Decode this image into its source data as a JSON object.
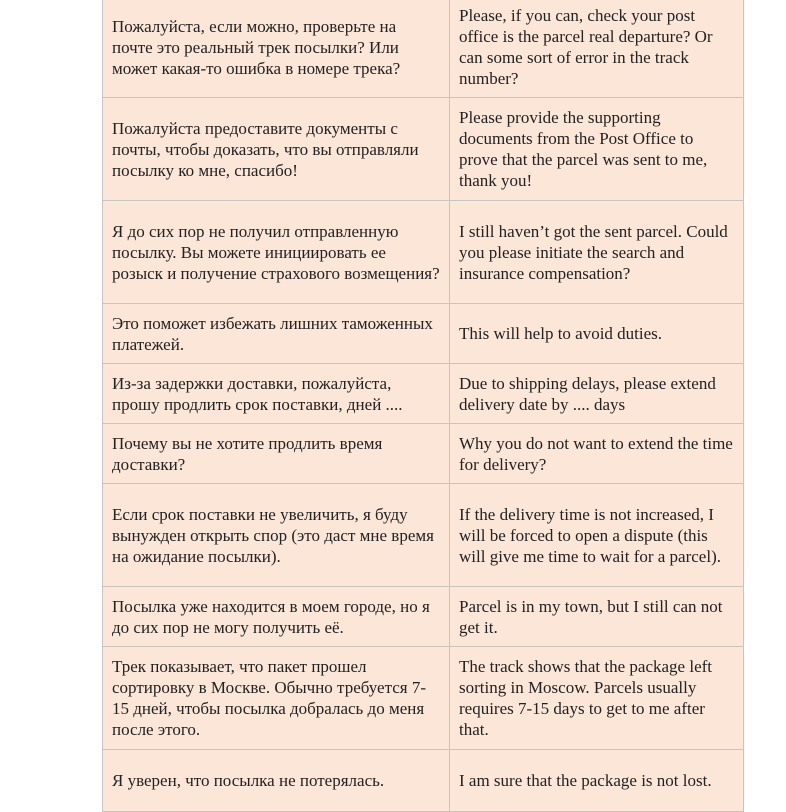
{
  "table": {
    "rows": [
      [
        "Пожалуйста, если можно, проверьте на почте это реальный трек посылки? Или может какая-то ошибка в номере трека?",
        "Please, if you can, check your post office is the parcel real departure? Or can some sort of error in the track number?"
      ],
      [
        "Пожалуйста предоставите документы с почты, чтобы доказать, что вы отправляли посылку ко мне, спасибо!",
        "Please provide the supporting documents from the Post Office to prove that the parcel was sent to me, thank you!"
      ],
      [
        "Я до сих пор не получил отправленную посылку. Вы можете инициировать ее розыск и получение страхового возмещения?",
        "I still haven’t got the sent parcel. Could you please initiate the search and insurance compensation?"
      ],
      [
        "Это поможет избежать лишних таможенных платежей.",
        "This will help to avoid duties."
      ],
      [
        "Из-за задержки доставки, пожалуйста, прошу продлить срок поставки, дней ....",
        "Due to shipping delays, please extend delivery date by .... days"
      ],
      [
        "Почему вы не хотите продлить время доставки?",
        "Why you do not want to extend the time for delivery?"
      ],
      [
        "Если срок поставки не увеличить, я буду вынужден открыть спор (это даст мне время на ожидание посылки).",
        "If the delivery time is not increased, I will be forced to open a dispute (this will give me time to wait for a parcel)."
      ],
      [
        "Посылка уже находится в моем городе, но я до сих пор не могу получить её.",
        "Parcel is in my town, but I still can not get it."
      ],
      [
        "Трек показывает, что пакет прошел сортировку в Москве. Обычно требуется 7-15 дней, чтобы посылка добралась до меня после этого.",
        "The track shows that the package left sorting in Moscow. Parcels usually requires 7-15 days to get to me after that."
      ],
      [
        "Я уверен, что посылка не потерялась.",
        "I am sure that the package is not lost."
      ]
    ]
  }
}
